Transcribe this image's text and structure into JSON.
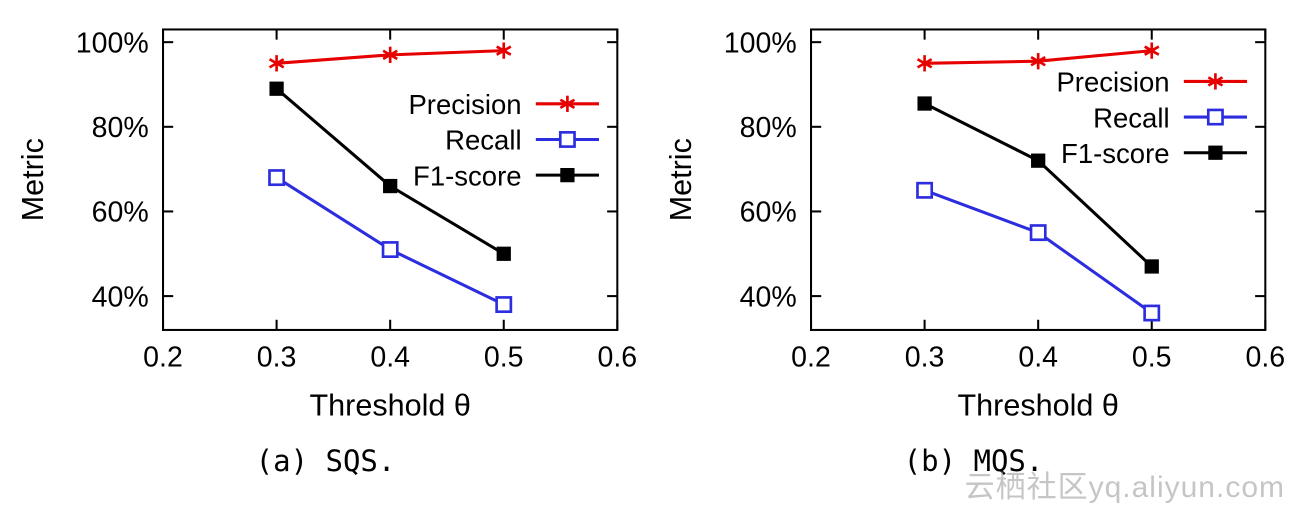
{
  "watermark": {
    "text": "云栖社区yq.aliyun.com"
  },
  "chart_data": [
    {
      "type": "line",
      "title": "(a) SQS.",
      "xlabel": "Threshold θ",
      "ylabel": "Metric",
      "x": [
        0.3,
        0.4,
        0.5
      ],
      "xlim": [
        0.2,
        0.6
      ],
      "ylim": [
        32,
        103
      ],
      "xticks": [
        0.2,
        0.3,
        0.4,
        0.5,
        0.6
      ],
      "xtick_labels": [
        "0.2",
        "0.3",
        "0.4",
        "0.5",
        "0.6"
      ],
      "yticks": [
        40,
        60,
        80,
        100
      ],
      "ytick_labels": [
        "40%",
        "60%",
        "80%",
        "100%"
      ],
      "grid": false,
      "legend": {
        "position": "inside-top-right",
        "y": 98
      },
      "series": [
        {
          "name": "Precision",
          "color": "#e60000",
          "marker": "star",
          "values": [
            95,
            97,
            98
          ]
        },
        {
          "name": "Recall",
          "color": "#2d2de0",
          "marker": "open-square",
          "values": [
            68,
            51,
            38
          ]
        },
        {
          "name": "F1-score",
          "color": "#000000",
          "marker": "filled-square",
          "values": [
            89,
            66,
            50
          ]
        }
      ]
    },
    {
      "type": "line",
      "title": "(b) MQS.",
      "xlabel": "Threshold θ",
      "ylabel": "Metric",
      "x": [
        0.3,
        0.4,
        0.5
      ],
      "xlim": [
        0.2,
        0.6
      ],
      "ylim": [
        32,
        103
      ],
      "xticks": [
        0.2,
        0.3,
        0.4,
        0.5,
        0.6
      ],
      "xtick_labels": [
        "0.2",
        "0.3",
        "0.4",
        "0.5",
        "0.6"
      ],
      "yticks": [
        40,
        60,
        80,
        100
      ],
      "ytick_labels": [
        "40%",
        "60%",
        "80%",
        "100%"
      ],
      "grid": false,
      "legend": {
        "position": "inside-top-right",
        "y": 76
      },
      "series": [
        {
          "name": "Precision",
          "color": "#e60000",
          "marker": "star",
          "values": [
            95,
            95.5,
            98
          ]
        },
        {
          "name": "Recall",
          "color": "#2d2de0",
          "marker": "open-square",
          "values": [
            65,
            55,
            36
          ]
        },
        {
          "name": "F1-score",
          "color": "#000000",
          "marker": "filled-square",
          "values": [
            85.5,
            72,
            47
          ]
        }
      ]
    }
  ]
}
